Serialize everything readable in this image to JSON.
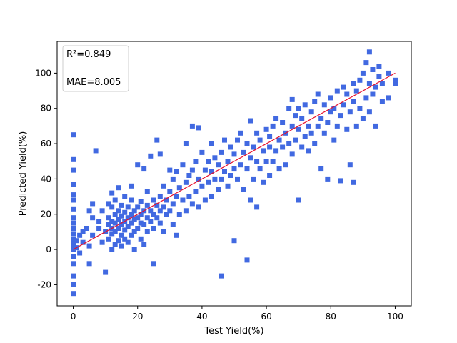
{
  "chart_data": {
    "type": "scatter",
    "title": "",
    "xlabel": "Test Yield(%)",
    "ylabel": "Predicted Yield(%)",
    "xlim": [
      -5,
      105
    ],
    "ylim": [
      -32,
      118
    ],
    "x_ticks": [
      0,
      20,
      40,
      60,
      80,
      100
    ],
    "y_ticks": [
      -20,
      0,
      20,
      40,
      60,
      80,
      100
    ],
    "grid": false,
    "marker": "square",
    "point_color": "#4169e1",
    "reference_line": {
      "from": [
        0,
        0
      ],
      "to": [
        100,
        100
      ],
      "color": "#e8112d"
    },
    "legend_position": "top-left",
    "annotations": [
      "R²=0.849",
      "MAE=8.005"
    ],
    "series": [
      {
        "points": [
          [
            0,
            -25
          ],
          [
            0,
            -20
          ],
          [
            0,
            -15
          ],
          [
            0,
            -8
          ],
          [
            0,
            -4
          ],
          [
            0,
            0
          ],
          [
            0,
            2
          ],
          [
            0,
            4
          ],
          [
            0,
            6
          ],
          [
            0,
            9
          ],
          [
            0,
            12
          ],
          [
            0,
            15
          ],
          [
            0,
            18
          ],
          [
            0,
            23
          ],
          [
            0,
            28
          ],
          [
            0,
            31
          ],
          [
            0,
            37
          ],
          [
            0,
            45
          ],
          [
            0,
            51
          ],
          [
            0,
            65
          ],
          [
            1,
            1
          ],
          [
            1,
            5
          ],
          [
            2,
            -2
          ],
          [
            2,
            8
          ],
          [
            3,
            4
          ],
          [
            3,
            10
          ],
          [
            4,
            12
          ],
          [
            5,
            -8
          ],
          [
            5,
            2
          ],
          [
            5,
            22
          ],
          [
            6,
            8
          ],
          [
            6,
            18
          ],
          [
            6,
            26
          ],
          [
            7,
            56
          ],
          [
            8,
            12
          ],
          [
            8,
            16
          ],
          [
            9,
            4
          ],
          [
            9,
            22
          ],
          [
            10,
            -13
          ],
          [
            10,
            10
          ],
          [
            11,
            6
          ],
          [
            11,
            14
          ],
          [
            11,
            18
          ],
          [
            11,
            26
          ],
          [
            12,
            0
          ],
          [
            12,
            9
          ],
          [
            12,
            12
          ],
          [
            12,
            16
          ],
          [
            12,
            24
          ],
          [
            12,
            32
          ],
          [
            13,
            3
          ],
          [
            13,
            10
          ],
          [
            13,
            15
          ],
          [
            13,
            20
          ],
          [
            13,
            28
          ],
          [
            14,
            5
          ],
          [
            14,
            12
          ],
          [
            14,
            17
          ],
          [
            14,
            22
          ],
          [
            14,
            35
          ],
          [
            15,
            2
          ],
          [
            15,
            8
          ],
          [
            15,
            14
          ],
          [
            15,
            19
          ],
          [
            15,
            25
          ],
          [
            16,
            6
          ],
          [
            16,
            11
          ],
          [
            16,
            16
          ],
          [
            16,
            21
          ],
          [
            16,
            30
          ],
          [
            17,
            4
          ],
          [
            17,
            13
          ],
          [
            17,
            18
          ],
          [
            17,
            24
          ],
          [
            18,
            8
          ],
          [
            18,
            15
          ],
          [
            18,
            20
          ],
          [
            18,
            28
          ],
          [
            18,
            36
          ],
          [
            19,
            0
          ],
          [
            19,
            10
          ],
          [
            19,
            17
          ],
          [
            19,
            22
          ],
          [
            20,
            12
          ],
          [
            20,
            18
          ],
          [
            20,
            24
          ],
          [
            20,
            48
          ],
          [
            21,
            6
          ],
          [
            21,
            15
          ],
          [
            21,
            20
          ],
          [
            21,
            27
          ],
          [
            22,
            3
          ],
          [
            22,
            14
          ],
          [
            22,
            22
          ],
          [
            22,
            46
          ],
          [
            23,
            10
          ],
          [
            23,
            18
          ],
          [
            23,
            25
          ],
          [
            23,
            33
          ],
          [
            24,
            16
          ],
          [
            24,
            22
          ],
          [
            24,
            53
          ],
          [
            25,
            -8
          ],
          [
            25,
            12
          ],
          [
            25,
            20
          ],
          [
            25,
            28
          ],
          [
            26,
            18
          ],
          [
            26,
            25
          ],
          [
            26,
            62
          ],
          [
            27,
            15
          ],
          [
            27,
            22
          ],
          [
            27,
            30
          ],
          [
            27,
            54
          ],
          [
            28,
            10
          ],
          [
            28,
            24
          ],
          [
            28,
            36
          ],
          [
            29,
            20
          ],
          [
            29,
            28
          ],
          [
            30,
            22
          ],
          [
            30,
            33
          ],
          [
            30,
            45
          ],
          [
            31,
            14
          ],
          [
            31,
            26
          ],
          [
            31,
            40
          ],
          [
            32,
            8
          ],
          [
            32,
            30
          ],
          [
            32,
            44
          ],
          [
            33,
            20
          ],
          [
            33,
            35
          ],
          [
            34,
            28
          ],
          [
            34,
            48
          ],
          [
            35,
            22
          ],
          [
            35,
            38
          ],
          [
            35,
            60
          ],
          [
            36,
            30
          ],
          [
            36,
            42
          ],
          [
            37,
            26
          ],
          [
            37,
            45
          ],
          [
            37,
            70
          ],
          [
            38,
            33
          ],
          [
            38,
            50
          ],
          [
            39,
            24
          ],
          [
            39,
            40
          ],
          [
            39,
            69
          ],
          [
            40,
            36
          ],
          [
            40,
            55
          ],
          [
            41,
            28
          ],
          [
            41,
            45
          ],
          [
            42,
            38
          ],
          [
            42,
            50
          ],
          [
            43,
            30
          ],
          [
            43,
            44
          ],
          [
            43,
            60
          ],
          [
            44,
            40
          ],
          [
            44,
            52
          ],
          [
            45,
            34
          ],
          [
            45,
            48
          ],
          [
            46,
            -15
          ],
          [
            46,
            40
          ],
          [
            46,
            55
          ],
          [
            47,
            44
          ],
          [
            47,
            62
          ],
          [
            48,
            36
          ],
          [
            48,
            50
          ],
          [
            49,
            42
          ],
          [
            49,
            58
          ],
          [
            50,
            5
          ],
          [
            50,
            46
          ],
          [
            50,
            54
          ],
          [
            51,
            40
          ],
          [
            51,
            62
          ],
          [
            52,
            48
          ],
          [
            52,
            66
          ],
          [
            53,
            34
          ],
          [
            53,
            55
          ],
          [
            54,
            -6
          ],
          [
            54,
            46
          ],
          [
            54,
            60
          ],
          [
            55,
            28
          ],
          [
            55,
            52
          ],
          [
            55,
            73
          ],
          [
            56,
            40
          ],
          [
            56,
            58
          ],
          [
            57,
            24
          ],
          [
            57,
            50
          ],
          [
            57,
            66
          ],
          [
            58,
            46
          ],
          [
            58,
            62
          ],
          [
            59,
            38
          ],
          [
            59,
            56
          ],
          [
            60,
            50
          ],
          [
            60,
            68
          ],
          [
            61,
            42
          ],
          [
            61,
            58
          ],
          [
            61,
            64
          ],
          [
            62,
            50
          ],
          [
            62,
            70
          ],
          [
            63,
            56
          ],
          [
            63,
            74
          ],
          [
            64,
            46
          ],
          [
            64,
            62
          ],
          [
            65,
            58
          ],
          [
            65,
            72
          ],
          [
            66,
            48
          ],
          [
            66,
            66
          ],
          [
            67,
            80
          ],
          [
            67,
            60
          ],
          [
            68,
            54
          ],
          [
            68,
            70
          ],
          [
            68,
            85
          ],
          [
            69,
            62
          ],
          [
            69,
            76
          ],
          [
            70,
            28
          ],
          [
            70,
            68
          ],
          [
            70,
            80
          ],
          [
            71,
            58
          ],
          [
            71,
            74
          ],
          [
            72,
            64
          ],
          [
            72,
            82
          ],
          [
            73,
            70
          ],
          [
            73,
            56
          ],
          [
            74,
            66
          ],
          [
            74,
            78
          ],
          [
            75,
            60
          ],
          [
            75,
            84
          ],
          [
            76,
            70
          ],
          [
            76,
            88
          ],
          [
            77,
            46
          ],
          [
            77,
            74
          ],
          [
            78,
            66
          ],
          [
            78,
            82
          ],
          [
            79,
            40
          ],
          [
            79,
            72
          ],
          [
            80,
            78
          ],
          [
            80,
            86
          ],
          [
            81,
            62
          ],
          [
            81,
            80
          ],
          [
            82,
            70
          ],
          [
            82,
            90
          ],
          [
            83,
            39
          ],
          [
            83,
            76
          ],
          [
            84,
            82
          ],
          [
            84,
            92
          ],
          [
            85,
            68
          ],
          [
            85,
            88
          ],
          [
            86,
            48
          ],
          [
            86,
            78
          ],
          [
            87,
            38
          ],
          [
            87,
            84
          ],
          [
            87,
            94
          ],
          [
            88,
            70
          ],
          [
            88,
            90
          ],
          [
            89,
            80
          ],
          [
            89,
            96
          ],
          [
            90,
            74
          ],
          [
            90,
            100
          ],
          [
            91,
            86
          ],
          [
            91,
            106
          ],
          [
            92,
            78
          ],
          [
            92,
            94
          ],
          [
            92,
            112
          ],
          [
            93,
            88
          ],
          [
            93,
            102
          ],
          [
            94,
            70
          ],
          [
            94,
            92
          ],
          [
            95,
            98
          ],
          [
            95,
            104
          ],
          [
            96,
            84
          ],
          [
            96,
            94
          ],
          [
            98,
            86
          ],
          [
            98,
            100
          ],
          [
            100,
            94
          ],
          [
            100,
            96
          ]
        ]
      }
    ]
  }
}
